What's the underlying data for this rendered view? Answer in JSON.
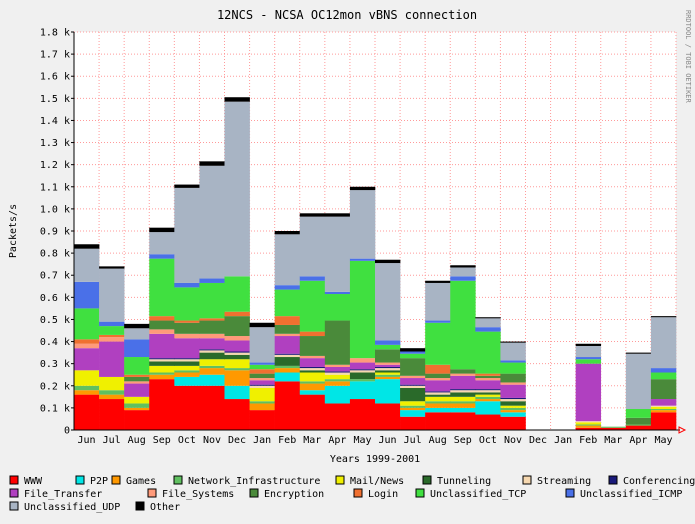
{
  "chart_data": {
    "type": "bar",
    "title": "12NCS - NCSA OC12mon vBNS connection",
    "xlabel": "Years 1999-2001",
    "ylabel": "Packets/s",
    "side_text": "RRDTOOL / TOBI OETIKER",
    "ylim": [
      0,
      1800
    ],
    "y_ticks": [
      {
        "v": 0,
        "label": "0"
      },
      {
        "v": 100,
        "label": "0.1 k"
      },
      {
        "v": 200,
        "label": "0.2 k"
      },
      {
        "v": 300,
        "label": "0.3 k"
      },
      {
        "v": 400,
        "label": "0.4 k"
      },
      {
        "v": 500,
        "label": "0.5 k"
      },
      {
        "v": 600,
        "label": "0.6 k"
      },
      {
        "v": 700,
        "label": "0.7 k"
      },
      {
        "v": 800,
        "label": "0.8 k"
      },
      {
        "v": 900,
        "label": "0.9 k"
      },
      {
        "v": 1000,
        "label": "1.0 k"
      },
      {
        "v": 1100,
        "label": "1.1 k"
      },
      {
        "v": 1200,
        "label": "1.2 k"
      },
      {
        "v": 1300,
        "label": "1.3 k"
      },
      {
        "v": 1400,
        "label": "1.4 k"
      },
      {
        "v": 1500,
        "label": "1.5 k"
      },
      {
        "v": 1600,
        "label": "1.6 k"
      },
      {
        "v": 1700,
        "label": "1.7 k"
      },
      {
        "v": 1800,
        "label": "1.8 k"
      }
    ],
    "categories": [
      "Jun",
      "Jul",
      "Aug",
      "Sep",
      "Oct",
      "Nov",
      "Dec",
      "Jan",
      "Feb",
      "Mar",
      "Apr",
      "May",
      "Jun",
      "Jul",
      "Aug",
      "Sep",
      "Oct",
      "Nov",
      "Dec",
      "Jan",
      "Feb",
      "Mar",
      "Apr",
      "May"
    ],
    "grid": true,
    "legend_position": "bottom",
    "series": [
      {
        "name": "WWW",
        "color": "#ff0000",
        "values": [
          160,
          140,
          90,
          230,
          200,
          200,
          140,
          90,
          220,
          160,
          120,
          140,
          120,
          60,
          80,
          80,
          70,
          60,
          0,
          0,
          10,
          10,
          20,
          80
        ]
      },
      {
        "name": "P2P",
        "color": "#00e6e6",
        "values": [
          0,
          0,
          0,
          0,
          40,
          50,
          60,
          0,
          40,
          20,
          80,
          80,
          110,
          30,
          20,
          20,
          60,
          20,
          0,
          0,
          0,
          0,
          0,
          0
        ]
      },
      {
        "name": "Games",
        "color": "#ff9900",
        "values": [
          20,
          20,
          10,
          20,
          20,
          30,
          70,
          30,
          20,
          30,
          20,
          0,
          10,
          10,
          20,
          20,
          10,
          10,
          0,
          0,
          10,
          0,
          0,
          10
        ]
      },
      {
        "name": "Network_Infrastructure",
        "color": "#60c060",
        "values": [
          20,
          20,
          20,
          10,
          10,
          10,
          10,
          10,
          10,
          10,
          10,
          10,
          10,
          10,
          10,
          10,
          10,
          10,
          0,
          0,
          5,
          5,
          5,
          5
        ]
      },
      {
        "name": "Mail/News",
        "color": "#f0f000",
        "values": [
          70,
          60,
          30,
          30,
          20,
          30,
          40,
          60,
          0,
          40,
          20,
          0,
          10,
          20,
          20,
          20,
          10,
          10,
          0,
          0,
          10,
          0,
          0,
          10
        ]
      },
      {
        "name": "Tunneling",
        "color": "#2a6a2a",
        "values": [
          0,
          0,
          0,
          20,
          20,
          30,
          20,
          0,
          40,
          10,
          0,
          30,
          10,
          60,
          10,
          20,
          10,
          20,
          0,
          0,
          0,
          0,
          0,
          0
        ]
      },
      {
        "name": "Streaming",
        "color": "#f6d8b0",
        "values": [
          0,
          0,
          0,
          10,
          10,
          10,
          10,
          10,
          10,
          10,
          10,
          10,
          10,
          10,
          10,
          10,
          10,
          10,
          0,
          0,
          5,
          0,
          0,
          5
        ]
      },
      {
        "name": "Conferencing",
        "color": "#1a1a7a",
        "values": [
          0,
          0,
          0,
          5,
          5,
          5,
          5,
          5,
          5,
          5,
          5,
          5,
          5,
          5,
          5,
          5,
          5,
          5,
          0,
          0,
          0,
          0,
          0,
          0
        ]
      },
      {
        "name": "File_Transfer",
        "color": "#b040c0",
        "values": [
          100,
          160,
          60,
          110,
          90,
          50,
          50,
          20,
          80,
          40,
          20,
          30,
          10,
          30,
          50,
          60,
          40,
          60,
          0,
          0,
          260,
          0,
          0,
          30
        ]
      },
      {
        "name": "File_Systems",
        "color": "#ff9a7a",
        "values": [
          20,
          20,
          10,
          20,
          20,
          20,
          20,
          10,
          10,
          10,
          10,
          20,
          10,
          10,
          10,
          10,
          10,
          10,
          0,
          0,
          0,
          0,
          0,
          0
        ]
      },
      {
        "name": "Encryption",
        "color": "#4a8a3a",
        "values": [
          0,
          0,
          20,
          40,
          50,
          60,
          90,
          20,
          40,
          90,
          200,
          0,
          60,
          80,
          20,
          20,
          10,
          40,
          0,
          0,
          0,
          0,
          30,
          90
        ]
      },
      {
        "name": "Login",
        "color": "#f07030",
        "values": [
          20,
          10,
          10,
          20,
          10,
          10,
          20,
          20,
          40,
          20,
          0,
          0,
          0,
          0,
          40,
          0,
          10,
          0,
          0,
          0,
          0,
          0,
          0,
          0
        ]
      },
      {
        "name": "Unclassified_TCP",
        "color": "#40e040",
        "values": [
          140,
          40,
          80,
          260,
          150,
          160,
          160,
          20,
          120,
          230,
          120,
          440,
          20,
          20,
          190,
          400,
          190,
          50,
          0,
          0,
          20,
          0,
          40,
          30
        ]
      },
      {
        "name": "Unclassified_ICMP",
        "color": "#4a70e8",
        "values": [
          120,
          20,
          80,
          20,
          20,
          20,
          0,
          10,
          20,
          20,
          10,
          10,
          20,
          10,
          10,
          20,
          20,
          10,
          0,
          0,
          10,
          0,
          0,
          20
        ]
      },
      {
        "name": "Unclassified_UDP",
        "color": "#a8b4c4",
        "values": [
          150,
          240,
          50,
          100,
          430,
          510,
          790,
          160,
          230,
          270,
          340,
          310,
          350,
          0,
          170,
          40,
          40,
          80,
          0,
          0,
          50,
          0,
          250,
          230
        ]
      },
      {
        "name": "Other",
        "color": "#000000",
        "values": [
          20,
          10,
          20,
          20,
          15,
          20,
          20,
          20,
          15,
          15,
          15,
          15,
          15,
          15,
          10,
          10,
          5,
          5,
          0,
          0,
          10,
          0,
          5,
          5
        ]
      }
    ]
  }
}
